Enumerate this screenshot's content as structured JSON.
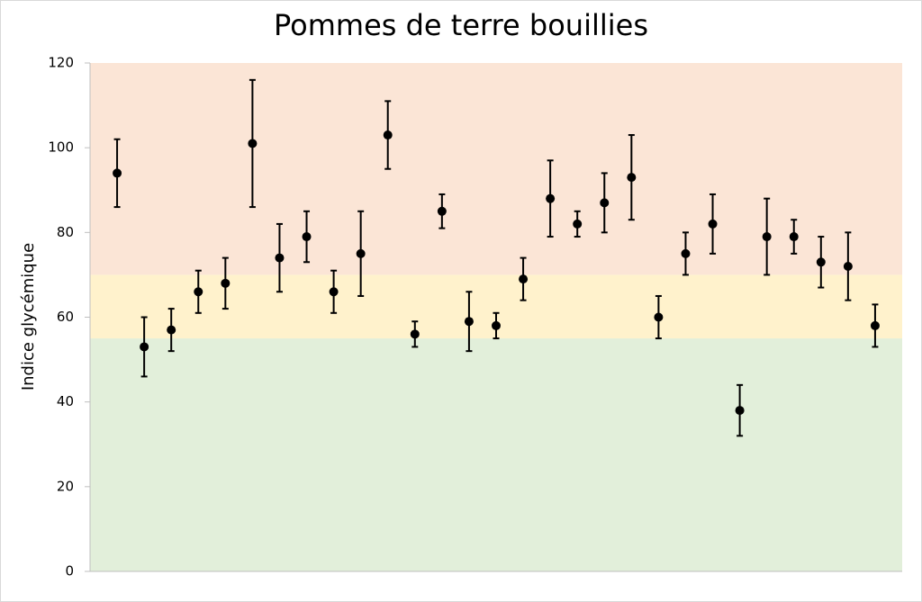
{
  "chart_data": {
    "type": "errorbar-scatter",
    "title": "Pommes de terre bouillies",
    "y_label": "Indice glycémique",
    "categories": [
      null,
      null,
      null,
      null,
      null,
      null,
      null,
      null,
      null,
      null,
      null,
      null,
      null,
      null,
      null,
      null,
      null,
      null,
      null,
      null,
      null,
      null,
      null,
      null,
      null,
      null,
      null,
      null,
      null
    ],
    "values": [
      94,
      53,
      57,
      66,
      68,
      101,
      74,
      79,
      66,
      75,
      103,
      56,
      85,
      59,
      58,
      69,
      88,
      82,
      87,
      93,
      60,
      75,
      82,
      38,
      79,
      79,
      73,
      72,
      58
    ],
    "errors": [
      8,
      7,
      5,
      5,
      6,
      15,
      8,
      6,
      5,
      10,
      8,
      3,
      4,
      7,
      3,
      5,
      9,
      3,
      7,
      10,
      5,
      5,
      7,
      6,
      9,
      4,
      6,
      8,
      5
    ],
    "color": "#000000",
    "bands": [
      {
        "from": 0,
        "to": 55,
        "color": "#e2efda"
      },
      {
        "from": 55,
        "to": 70,
        "color": "#fff2cc"
      },
      {
        "from": 70,
        "to": 120,
        "color": "#fbe5d6"
      }
    ],
    "ylim": [
      0,
      120
    ],
    "yticks": [
      0,
      20,
      40,
      60,
      80,
      100,
      120
    ],
    "grid": false
  }
}
